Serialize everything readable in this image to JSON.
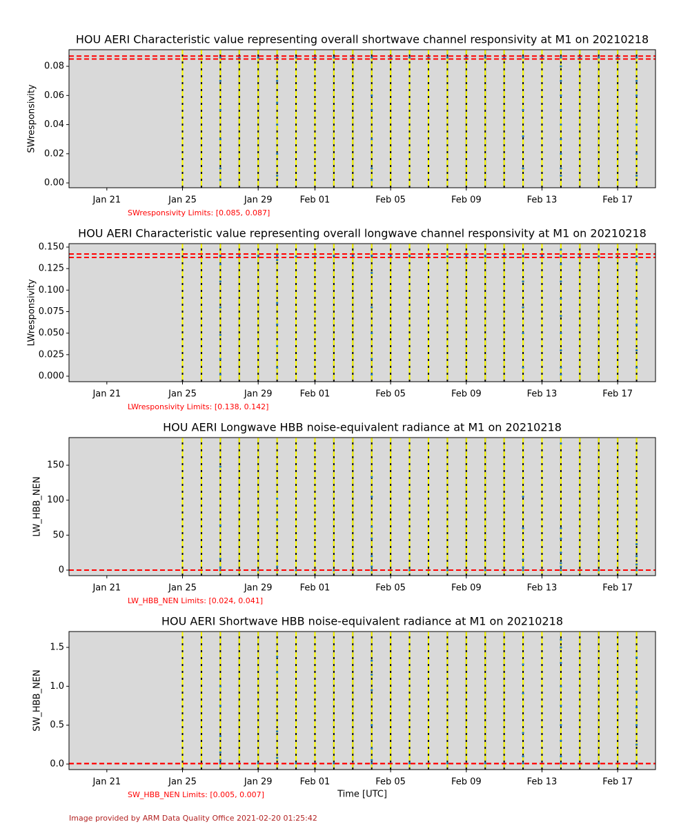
{
  "chart_data": [
    {
      "type": "scatter",
      "title": "HOU AERI Characteristic value representing overall shortwave channel responsivity at M1 on 20210218",
      "ylabel": "SWresponsivity",
      "limits_text": "SWresponsivity Limits: [0.085, 0.087]",
      "color": "#1f77b4",
      "xlim": [
        "Jan 19",
        "Feb 19"
      ],
      "xticks": [
        "Jan 21",
        "Jan 25",
        "Jan 29",
        "Feb 01",
        "Feb 05",
        "Feb 09",
        "Feb 13",
        "Feb 17"
      ],
      "ylim": [
        -0.0033,
        0.0914
      ],
      "yticks": [
        {
          "value": 0,
          "label": "0.00"
        },
        {
          "value": 0.02,
          "label": "0.02"
        },
        {
          "value": 0.04,
          "label": "0.04"
        },
        {
          "value": 0.06,
          "label": "0.06"
        },
        {
          "value": 0.08,
          "label": "0.08"
        }
      ],
      "hlines": [
        0.085,
        0.087
      ],
      "vlines": [
        "Jan 25",
        "Jan 26",
        "Jan 27",
        "Jan 28",
        "Jan 29",
        "Jan 30",
        "Jan 31",
        "Feb 01",
        "Feb 02",
        "Feb 03",
        "Feb 04",
        "Feb 05",
        "Feb 06",
        "Feb 07",
        "Feb 08",
        "Feb 09",
        "Feb 10",
        "Feb 11",
        "Feb 12",
        "Feb 13",
        "Feb 14",
        "Feb 15",
        "Feb 16",
        "Feb 17",
        "Feb 18"
      ],
      "x": [
        "Jan 27",
        "Jan 28",
        "Jan 29",
        "Jan 30",
        "Jan 31",
        "Feb 01",
        "Feb 02",
        "Feb 03",
        "Feb 04",
        "Feb 05",
        "Feb 06",
        "Feb 07",
        "Feb 08",
        "Feb 09",
        "Feb 10",
        "Feb 11",
        "Feb 12",
        "Feb 13",
        "Feb 14",
        "Feb 15",
        "Feb 16",
        "Feb 17",
        "Feb 18",
        "Jan 27",
        "Jan 27",
        "Jan 27",
        "Jan 27",
        "Jan 27",
        "Jan 30",
        "Jan 30",
        "Jan 30",
        "Jan 30",
        "Jan 30",
        "Feb 04",
        "Feb 04",
        "Feb 04",
        "Feb 04",
        "Feb 04",
        "Feb 12",
        "Feb 12",
        "Feb 12",
        "Feb 14",
        "Feb 14",
        "Feb 14",
        "Feb 14",
        "Feb 14",
        "Feb 14",
        "Feb 14",
        "Feb 14",
        "Feb 14",
        "Feb 18",
        "Feb 18",
        "Feb 18",
        "Feb 18",
        "Feb 18"
      ],
      "values": [
        0.086,
        0.086,
        0.086,
        0.086,
        0.086,
        0.086,
        0.086,
        0.086,
        0.086,
        0.086,
        0.086,
        0.086,
        0.086,
        0.086,
        0.086,
        0.086,
        0.086,
        0.086,
        0.086,
        0.086,
        0.086,
        0.086,
        0.086,
        0.05,
        0.03,
        0.01,
        0.002,
        0.07,
        0.04,
        0.055,
        0.02,
        0.005,
        0.07,
        0.06,
        0.03,
        0.01,
        0.002,
        0.05,
        0.05,
        0.032,
        0.01,
        0.08,
        0.06,
        0.04,
        0.02,
        0.005,
        0.07,
        0.05,
        0.03,
        0.01,
        0.07,
        0.04,
        0.02,
        0.005,
        0.06
      ]
    },
    {
      "type": "scatter",
      "title": "HOU AERI Characteristic value representing overall longwave channel responsivity at M1 on 20210218",
      "ylabel": "LWresponsivity",
      "limits_text": "LWresponsivity Limits: [0.138, 0.142]",
      "color": "#1f77b4",
      "xlim": [
        "Jan 19",
        "Feb 19"
      ],
      "xticks": [
        "Jan 21",
        "Jan 25",
        "Jan 29",
        "Feb 01",
        "Feb 05",
        "Feb 09",
        "Feb 13",
        "Feb 17"
      ],
      "ylim": [
        -0.0064,
        0.154
      ],
      "yticks": [
        {
          "value": 0,
          "label": "0.000"
        },
        {
          "value": 0.025,
          "label": "0.025"
        },
        {
          "value": 0.05,
          "label": "0.050"
        },
        {
          "value": 0.075,
          "label": "0.075"
        },
        {
          "value": 0.1,
          "label": "0.100"
        },
        {
          "value": 0.125,
          "label": "0.125"
        },
        {
          "value": 0.15,
          "label": "0.150"
        }
      ],
      "hlines": [
        0.138,
        0.142
      ],
      "vlines": [
        "Jan 25",
        "Jan 26",
        "Jan 27",
        "Jan 28",
        "Jan 29",
        "Jan 30",
        "Jan 31",
        "Feb 01",
        "Feb 02",
        "Feb 03",
        "Feb 04",
        "Feb 05",
        "Feb 06",
        "Feb 07",
        "Feb 08",
        "Feb 09",
        "Feb 10",
        "Feb 11",
        "Feb 12",
        "Feb 13",
        "Feb 14",
        "Feb 15",
        "Feb 16",
        "Feb 17",
        "Feb 18"
      ],
      "x": [
        "Jan 27",
        "Jan 28",
        "Jan 29",
        "Jan 30",
        "Jan 31",
        "Feb 01",
        "Feb 02",
        "Feb 03",
        "Feb 04",
        "Feb 05",
        "Feb 06",
        "Feb 07",
        "Feb 08",
        "Feb 09",
        "Feb 10",
        "Feb 11",
        "Feb 12",
        "Feb 13",
        "Feb 14",
        "Feb 15",
        "Feb 16",
        "Feb 17",
        "Feb 18",
        "Jan 27",
        "Jan 27",
        "Jan 27",
        "Jan 27",
        "Jan 27",
        "Jan 27",
        "Jan 30",
        "Jan 30",
        "Jan 30",
        "Jan 30",
        "Jan 30",
        "Feb 04",
        "Feb 04",
        "Feb 04",
        "Feb 04",
        "Feb 04",
        "Feb 12",
        "Feb 12",
        "Feb 12",
        "Feb 12",
        "Feb 14",
        "Feb 14",
        "Feb 14",
        "Feb 14",
        "Feb 14",
        "Feb 14",
        "Feb 14",
        "Feb 14",
        "Feb 14",
        "Feb 18",
        "Feb 18",
        "Feb 18",
        "Feb 18",
        "Feb 18"
      ],
      "values": [
        0.14,
        0.14,
        0.14,
        0.14,
        0.139,
        0.139,
        0.14,
        0.14,
        0.14,
        0.14,
        0.14,
        0.14,
        0.139,
        0.14,
        0.14,
        0.14,
        0.14,
        0.14,
        0.14,
        0.14,
        0.139,
        0.138,
        0.139,
        0.13,
        0.11,
        0.08,
        0.048,
        0.02,
        0.002,
        0.135,
        0.085,
        0.06,
        0.035,
        0.01,
        0.12,
        0.08,
        0.05,
        0.02,
        0.002,
        0.11,
        0.08,
        0.05,
        0.01,
        0.147,
        0.13,
        0.11,
        0.09,
        0.07,
        0.05,
        0.03,
        0.01,
        0.002,
        0.13,
        0.09,
        0.06,
        0.03,
        0.01
      ]
    },
    {
      "type": "scatter",
      "title": "HOU AERI Longwave HBB noise-equivalent radiance at M1 on 20210218",
      "ylabel": "LW_HBB_NEN",
      "limits_text": "LW_HBB_NEN Limits: [0.024, 0.041]",
      "color": "#1f77b4",
      "xlim": [
        "Jan 19",
        "Feb 19"
      ],
      "xticks": [
        "Jan 21",
        "Jan 25",
        "Jan 29",
        "Feb 01",
        "Feb 05",
        "Feb 09",
        "Feb 13",
        "Feb 17"
      ],
      "ylim": [
        -7.9,
        189.5
      ],
      "yticks": [
        0,
        50,
        100,
        150
      ],
      "hlines": [
        0.024,
        0.041
      ],
      "vlines": [
        "Jan 25",
        "Jan 26",
        "Jan 27",
        "Jan 28",
        "Jan 29",
        "Jan 30",
        "Jan 31",
        "Feb 01",
        "Feb 02",
        "Feb 03",
        "Feb 04",
        "Feb 05",
        "Feb 06",
        "Feb 07",
        "Feb 08",
        "Feb 09",
        "Feb 10",
        "Feb 11",
        "Feb 12",
        "Feb 13",
        "Feb 14",
        "Feb 15",
        "Feb 16",
        "Feb 17",
        "Feb 18"
      ],
      "x": [
        "Jan 27",
        "Jan 28",
        "Jan 29",
        "Jan 30",
        "Jan 31",
        "Feb 01",
        "Feb 02",
        "Feb 03",
        "Feb 04",
        "Feb 05",
        "Feb 06",
        "Feb 07",
        "Feb 08",
        "Feb 09",
        "Feb 10",
        "Feb 11",
        "Feb 12",
        "Feb 13",
        "Feb 14",
        "Feb 15",
        "Feb 16",
        "Feb 17",
        "Feb 18",
        "Jan 27",
        "Jan 27",
        "Jan 27",
        "Jan 27",
        "Jan 30",
        "Jan 30",
        "Jan 30",
        "Feb 04",
        "Feb 04",
        "Feb 04",
        "Feb 04",
        "Feb 04",
        "Feb 04",
        "Feb 12",
        "Feb 12",
        "Feb 12",
        "Feb 12",
        "Feb 14",
        "Feb 14",
        "Feb 14",
        "Feb 14",
        "Feb 14",
        "Feb 14",
        "Feb 18",
        "Feb 18",
        "Feb 18"
      ],
      "values": [
        0,
        0,
        0,
        0,
        0,
        0,
        0,
        0,
        0,
        0,
        0,
        0,
        0,
        0,
        0,
        0,
        0,
        0,
        0,
        0,
        0,
        0,
        0,
        148,
        64,
        16,
        4,
        102,
        72,
        5,
        133,
        105,
        62,
        45,
        20,
        5,
        105,
        60,
        15,
        4,
        181,
        60,
        45,
        25,
        10,
        5,
        37,
        20,
        8
      ]
    },
    {
      "type": "scatter",
      "title": "HOU AERI Shortwave HBB noise-equivalent radiance at M1 on 20210218",
      "ylabel": "SW_HBB_NEN",
      "xlabel": "Time [UTC]",
      "limits_text": "SW_HBB_NEN Limits: [0.005, 0.007]",
      "color": "#1f77b4",
      "xlim": [
        "Jan 19",
        "Feb 19"
      ],
      "xticks": [
        "Jan 21",
        "Jan 25",
        "Jan 29",
        "Feb 01",
        "Feb 05",
        "Feb 09",
        "Feb 13",
        "Feb 17"
      ],
      "ylim": [
        -0.071,
        1.704
      ],
      "yticks": [
        {
          "value": 0,
          "label": "0.0"
        },
        {
          "value": 0.5,
          "label": "0.5"
        },
        {
          "value": 1,
          "label": "1.0"
        },
        {
          "value": 1.5,
          "label": "1.5"
        }
      ],
      "hlines": [
        0.005,
        0.007
      ],
      "vlines": [
        "Jan 25",
        "Jan 26",
        "Jan 27",
        "Jan 28",
        "Jan 29",
        "Jan 30",
        "Jan 31",
        "Feb 01",
        "Feb 02",
        "Feb 03",
        "Feb 04",
        "Feb 05",
        "Feb 06",
        "Feb 07",
        "Feb 08",
        "Feb 09",
        "Feb 10",
        "Feb 11",
        "Feb 12",
        "Feb 13",
        "Feb 14",
        "Feb 15",
        "Feb 16",
        "Feb 17",
        "Feb 18"
      ],
      "x": [
        "Jan 27",
        "Jan 28",
        "Jan 29",
        "Jan 30",
        "Jan 31",
        "Feb 01",
        "Feb 02",
        "Feb 03",
        "Feb 04",
        "Feb 05",
        "Feb 06",
        "Feb 07",
        "Feb 08",
        "Feb 09",
        "Feb 10",
        "Feb 11",
        "Feb 12",
        "Feb 13",
        "Feb 14",
        "Feb 15",
        "Feb 16",
        "Feb 17",
        "Feb 18",
        "Jan 27",
        "Jan 27",
        "Jan 27",
        "Jan 27",
        "Jan 27",
        "Jan 30",
        "Jan 30",
        "Jan 30",
        "Jan 30",
        "Feb 04",
        "Feb 04",
        "Feb 04",
        "Feb 04",
        "Feb 04",
        "Feb 04",
        "Feb 12",
        "Feb 12",
        "Feb 12",
        "Feb 12",
        "Feb 14",
        "Feb 14",
        "Feb 14",
        "Feb 14",
        "Feb 14",
        "Feb 14",
        "Feb 14",
        "Feb 14",
        "Feb 18",
        "Feb 18",
        "Feb 18",
        "Feb 18",
        "Feb 18"
      ],
      "values": [
        0.01,
        0.01,
        0.01,
        0.01,
        0.01,
        0.01,
        0.01,
        0.01,
        0.01,
        0.01,
        0.01,
        0.01,
        0.01,
        0.01,
        0.01,
        0.01,
        0.01,
        0.01,
        0.01,
        0.01,
        0.01,
        0.01,
        0.01,
        1.0,
        0.75,
        0.36,
        0.15,
        0.05,
        1.38,
        1.18,
        0.42,
        0.08,
        1.33,
        1.15,
        0.95,
        0.5,
        0.2,
        0.05,
        1.28,
        0.91,
        0.4,
        0.1,
        1.6,
        1.5,
        1.3,
        1.0,
        0.75,
        0.5,
        0.3,
        0.1,
        1.37,
        0.93,
        0.73,
        0.5,
        0.25
      ]
    }
  ],
  "footer": "Image provided by ARM Data Quality Office 2021-02-20 01:25:42"
}
